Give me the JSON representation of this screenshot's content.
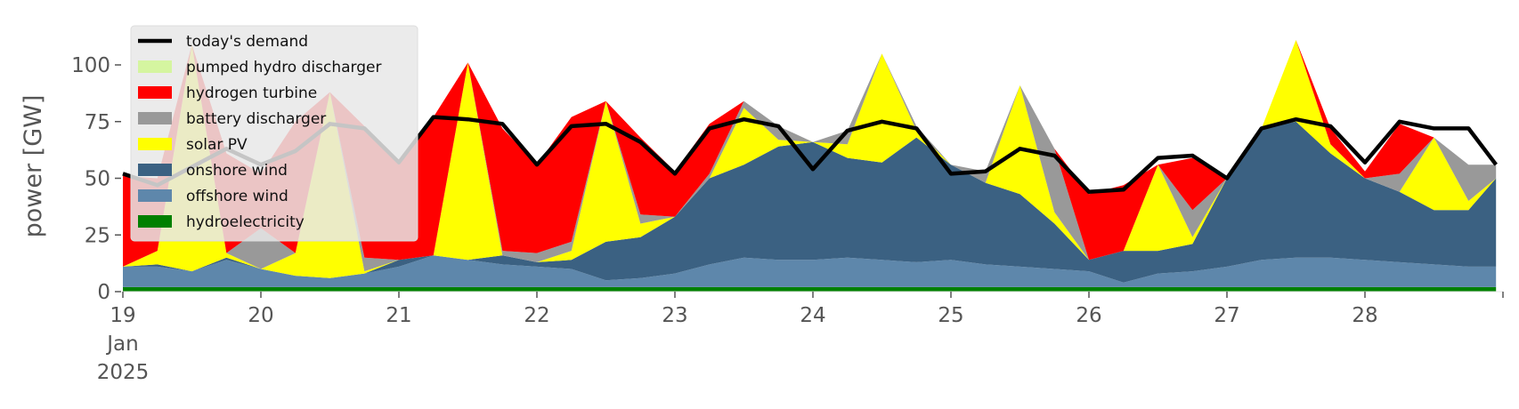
{
  "chart_data": {
    "type": "area",
    "stacked": true,
    "ylabel": "power [GW]",
    "ylim": [
      0,
      120
    ],
    "yticks": [
      0,
      25,
      50,
      75,
      100
    ],
    "xlim": [
      19,
      29
    ],
    "xticks": [
      {
        "x": 19,
        "label": "19",
        "sub1": "Jan",
        "sub2": "2025"
      },
      {
        "x": 20,
        "label": "20"
      },
      {
        "x": 21,
        "label": "21"
      },
      {
        "x": 22,
        "label": "22"
      },
      {
        "x": 23,
        "label": "23"
      },
      {
        "x": 24,
        "label": "24"
      },
      {
        "x": 25,
        "label": "25"
      },
      {
        "x": 26,
        "label": "26"
      },
      {
        "x": 27,
        "label": "27"
      },
      {
        "x": 28,
        "label": "28"
      }
    ],
    "grid": false,
    "legend_position": "top-left",
    "legend": [
      {
        "name": "today's demand",
        "color": "#000000",
        "kind": "line"
      },
      {
        "name": "pumped hydro discharger",
        "color": "#d5f5a0",
        "kind": "patch"
      },
      {
        "name": "hydrogen turbine",
        "color": "#ff0000",
        "kind": "patch"
      },
      {
        "name": "battery discharger",
        "color": "#999999",
        "kind": "patch"
      },
      {
        "name": "solar PV",
        "color": "#ffff00",
        "kind": "patch"
      },
      {
        "name": "onshore wind",
        "color": "#3b6182",
        "kind": "patch"
      },
      {
        "name": "offshore wind",
        "color": "#5e87ab",
        "kind": "patch"
      },
      {
        "name": "hydroelectricity",
        "color": "#008000",
        "kind": "patch"
      }
    ],
    "x": [
      19.0,
      19.25,
      19.5,
      19.75,
      20.0,
      20.25,
      20.5,
      20.75,
      21.0,
      21.25,
      21.5,
      21.75,
      22.0,
      22.25,
      22.5,
      22.75,
      23.0,
      23.25,
      23.5,
      23.75,
      24.0,
      24.25,
      24.5,
      24.75,
      25.0,
      25.25,
      25.5,
      25.75,
      26.0,
      26.25,
      26.5,
      26.75,
      27.0,
      27.25,
      27.5,
      27.75,
      28.0,
      28.25,
      28.5,
      28.75,
      28.95
    ],
    "series": [
      {
        "name": "hydroelectricity",
        "color": "#008000",
        "values": [
          2,
          2,
          2,
          2,
          2,
          2,
          2,
          2,
          2,
          2,
          2,
          2,
          2,
          2,
          2,
          2,
          2,
          2,
          2,
          2,
          2,
          2,
          2,
          2,
          2,
          2,
          2,
          2,
          2,
          2,
          2,
          2,
          2,
          2,
          2,
          2,
          2,
          2,
          2,
          2,
          2
        ]
      },
      {
        "name": "offshore wind",
        "color": "#5e87ab",
        "values": [
          9,
          9,
          7,
          12,
          8,
          5,
          4,
          6,
          9,
          14,
          12,
          10,
          9,
          8,
          3,
          4,
          6,
          10,
          13,
          12,
          12,
          13,
          12,
          11,
          12,
          10,
          9,
          8,
          7,
          2,
          6,
          7,
          9,
          12,
          13,
          13,
          12,
          11,
          10,
          9,
          9
        ]
      },
      {
        "name": "onshore wind",
        "color": "#3b6182",
        "values": [
          0,
          1,
          0,
          1,
          0,
          0,
          0,
          0,
          3,
          0,
          0,
          4,
          2,
          4,
          17,
          18,
          25,
          38,
          41,
          50,
          52,
          44,
          43,
          55,
          42,
          36,
          32,
          20,
          5,
          14,
          10,
          12,
          39,
          58,
          60,
          46,
          36,
          31,
          24,
          25,
          39
        ]
      },
      {
        "name": "solar PV",
        "color": "#ffff00",
        "values": [
          0,
          6,
          100,
          2,
          0,
          10,
          82,
          1,
          0,
          0,
          87,
          0,
          0,
          4,
          62,
          6,
          0,
          0,
          25,
          3,
          0,
          6,
          48,
          3,
          0,
          0,
          48,
          5,
          0,
          0,
          38,
          3,
          0,
          0,
          36,
          4,
          0,
          0,
          32,
          4,
          0
        ]
      },
      {
        "name": "battery discharger",
        "color": "#999999",
        "values": [
          0,
          0,
          0,
          0,
          18,
          0,
          0,
          6,
          0,
          0,
          0,
          2,
          4,
          4,
          0,
          4,
          0,
          2,
          3,
          6,
          0,
          6,
          0,
          2,
          0,
          5,
          0,
          28,
          0,
          0,
          0,
          12,
          0,
          0,
          0,
          0,
          0,
          8,
          0,
          16,
          6
        ]
      },
      {
        "name": "hydrogen turbine",
        "color": "#ff0000",
        "values": [
          40,
          32,
          0,
          44,
          24,
          58,
          0,
          58,
          44,
          61,
          0,
          54,
          39,
          55,
          0,
          34,
          20,
          22,
          0,
          0,
          0,
          0,
          0,
          0,
          0,
          0,
          0,
          0,
          29,
          29,
          0,
          23,
          0,
          0,
          0,
          7,
          3,
          22,
          0,
          0,
          0
        ]
      },
      {
        "name": "pumped hydro discharger",
        "color": "#d5f5a0",
        "values": [
          0,
          0,
          0,
          0,
          0,
          0,
          0,
          0,
          0,
          0,
          0,
          0,
          0,
          0,
          0,
          0,
          0,
          0,
          0,
          0,
          0,
          0,
          0,
          0,
          0,
          0,
          0,
          0,
          0,
          0,
          0,
          0,
          0,
          0,
          0,
          0,
          0,
          0,
          0,
          0,
          0
        ]
      }
    ],
    "demand": {
      "name": "today's demand",
      "color": "#000000",
      "values": [
        52,
        47,
        55,
        63,
        56,
        62,
        74,
        72,
        57,
        77,
        76,
        74,
        56,
        73,
        74,
        66,
        52,
        72,
        76,
        73,
        54,
        71,
        75,
        72,
        52,
        53,
        63,
        60,
        44,
        45,
        59,
        60,
        50,
        72,
        76,
        73,
        57,
        75,
        72,
        72,
        56
      ]
    }
  }
}
